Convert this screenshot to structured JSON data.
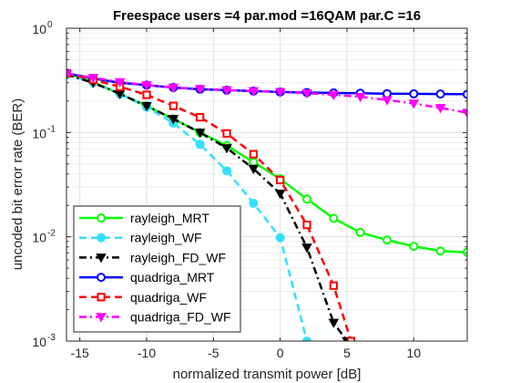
{
  "chart_data": {
    "type": "line",
    "title": "Freespace users =4 par.mod =16QAM par.C =16",
    "xlabel": "normalized transmit power [dB]",
    "ylabel": "uncoded bit error rate (BER)",
    "xlim": [
      -16,
      14
    ],
    "ylim": [
      0.001,
      1
    ],
    "yscale": "log",
    "grid": true,
    "legend_position": "bottom-left",
    "x_ticks": [
      -15,
      -10,
      -5,
      0,
      5,
      10
    ],
    "y_ticks": [
      {
        "value": 1,
        "base": "10",
        "exp": "0"
      },
      {
        "value": 0.1,
        "base": "10",
        "exp": "-1"
      },
      {
        "value": 0.01,
        "base": "10",
        "exp": "-2"
      },
      {
        "value": 0.001,
        "base": "10",
        "exp": "-3"
      }
    ],
    "series": [
      {
        "name": "rayleigh_MRT",
        "color": "#00ff00",
        "dash": "solid",
        "marker": "circle",
        "marker_fill": false,
        "x": [
          -16,
          -14,
          -12,
          -10,
          -8,
          -6,
          -4,
          -2,
          0,
          2,
          4,
          6,
          8,
          10,
          12,
          14
        ],
        "y": [
          0.37,
          0.305,
          0.235,
          0.18,
          0.135,
          0.1,
          0.075,
          0.052,
          0.036,
          0.023,
          0.015,
          0.011,
          0.0093,
          0.0081,
          0.0073,
          0.0071
        ]
      },
      {
        "name": "rayleigh_WF",
        "color": "#33e0ff",
        "dash": "dashed",
        "marker": "circle",
        "marker_fill": true,
        "x": [
          -16,
          -14,
          -12,
          -10,
          -8,
          -6,
          -4,
          -2,
          0,
          2
        ],
        "y": [
          0.36,
          0.3,
          0.235,
          0.175,
          0.123,
          0.077,
          0.043,
          0.021,
          0.0098,
          0.001
        ]
      },
      {
        "name": "rayleigh_FD_WF",
        "color": "#000000",
        "dash": "dashdot",
        "marker": "triangle-down",
        "marker_fill": true,
        "x": [
          -16,
          -14,
          -12,
          -10,
          -8,
          -6,
          -4,
          -2,
          0,
          2,
          4,
          5
        ],
        "y": [
          0.36,
          0.3,
          0.235,
          0.18,
          0.135,
          0.1,
          0.071,
          0.045,
          0.026,
          0.0079,
          0.0015,
          0.001
        ]
      },
      {
        "name": "quadriga_MRT",
        "color": "#0000ff",
        "dash": "solid",
        "marker": "circle",
        "marker_fill": false,
        "x": [
          -16,
          -14,
          -12,
          -10,
          -8,
          -6,
          -4,
          -2,
          0,
          2,
          4,
          6,
          8,
          10,
          12,
          14
        ],
        "y": [
          0.37,
          0.33,
          0.3,
          0.285,
          0.27,
          0.26,
          0.255,
          0.25,
          0.245,
          0.242,
          0.24,
          0.238,
          0.236,
          0.235,
          0.234,
          0.233
        ]
      },
      {
        "name": "quadriga_WF",
        "color": "#ff0000",
        "dash": "dashed",
        "marker": "square",
        "marker_fill": false,
        "x": [
          -16,
          -14,
          -12,
          -10,
          -8,
          -6,
          -4,
          -2,
          0,
          2,
          4,
          5.3
        ],
        "y": [
          0.37,
          0.32,
          0.275,
          0.23,
          0.18,
          0.14,
          0.098,
          0.062,
          0.035,
          0.013,
          0.0034,
          0.001
        ]
      },
      {
        "name": "quadriga_FD_WF",
        "color": "#ff00ff",
        "dash": "dashdot",
        "marker": "triangle-down",
        "marker_fill": true,
        "x": [
          -16,
          -14,
          -12,
          -10,
          -8,
          -6,
          -4,
          -2,
          0,
          2,
          4,
          6,
          8,
          10,
          12,
          14
        ],
        "y": [
          0.37,
          0.335,
          0.305,
          0.285,
          0.27,
          0.262,
          0.255,
          0.25,
          0.245,
          0.238,
          0.23,
          0.22,
          0.205,
          0.19,
          0.172,
          0.155
        ]
      }
    ]
  }
}
